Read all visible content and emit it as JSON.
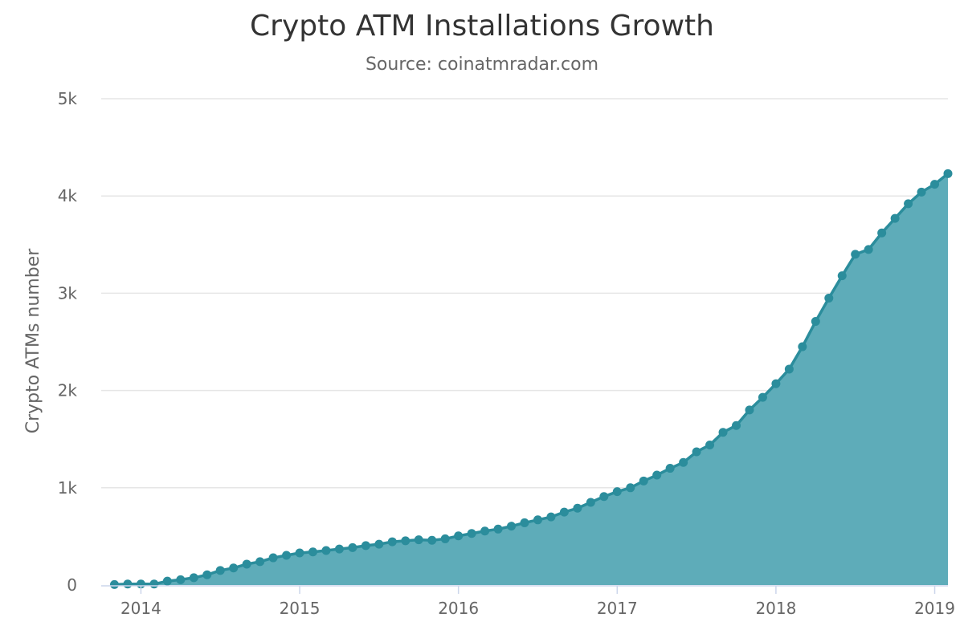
{
  "chart_data": {
    "type": "area",
    "title": "Crypto ATM Installations Growth",
    "subtitle": "Source: coinatmradar.com",
    "xlabel": "",
    "ylabel": "Crypto ATMs number",
    "x_ticks": [
      "2014",
      "2015",
      "2016",
      "2017",
      "2018",
      "2019"
    ],
    "y_ticks": [
      "0",
      "1k",
      "2k",
      "3k",
      "4k",
      "5k"
    ],
    "xlim": [
      "2013-10",
      "2019-02"
    ],
    "ylim": [
      0,
      5000
    ],
    "grid": "horizontal",
    "legend": "none",
    "colors": {
      "line": "#2b8d9c",
      "area": "#5eacb9",
      "grid": "#e6e6e6",
      "axis": "#ccd6eb"
    },
    "series": [
      {
        "x": [
          "2013-11",
          "2013-12",
          "2014-01",
          "2014-02",
          "2014-03",
          "2014-04",
          "2014-05",
          "2014-06",
          "2014-07",
          "2014-08",
          "2014-09",
          "2014-10",
          "2014-11",
          "2014-12",
          "2015-01",
          "2015-02",
          "2015-03",
          "2015-04",
          "2015-05",
          "2015-06",
          "2015-07",
          "2015-08",
          "2015-09",
          "2015-10",
          "2015-11",
          "2015-12",
          "2016-01",
          "2016-02",
          "2016-03",
          "2016-04",
          "2016-05",
          "2016-06",
          "2016-07",
          "2016-08",
          "2016-09",
          "2016-10",
          "2016-11",
          "2016-12",
          "2017-01",
          "2017-02",
          "2017-03",
          "2017-04",
          "2017-05",
          "2017-06",
          "2017-07",
          "2017-08",
          "2017-09",
          "2017-10",
          "2017-11",
          "2017-12",
          "2018-01",
          "2018-02",
          "2018-03",
          "2018-04",
          "2018-05",
          "2018-06",
          "2018-07",
          "2018-08",
          "2018-09",
          "2018-10",
          "2018-11",
          "2018-12",
          "2019-01",
          "2019-02"
        ],
        "values": [
          5,
          10,
          10,
          10,
          40,
          55,
          75,
          105,
          150,
          175,
          215,
          240,
          280,
          305,
          330,
          340,
          355,
          370,
          385,
          405,
          420,
          445,
          455,
          465,
          460,
          475,
          505,
          530,
          555,
          575,
          605,
          640,
          670,
          700,
          750,
          790,
          850,
          910,
          960,
          1000,
          1070,
          1130,
          1200,
          1260,
          1370,
          1440,
          1570,
          1640,
          1800,
          1930,
          2070,
          2220,
          2450,
          2710,
          2950,
          3180,
          3400,
          3450,
          3620,
          3770,
          3920,
          4040,
          4120,
          4230
        ]
      }
    ]
  }
}
